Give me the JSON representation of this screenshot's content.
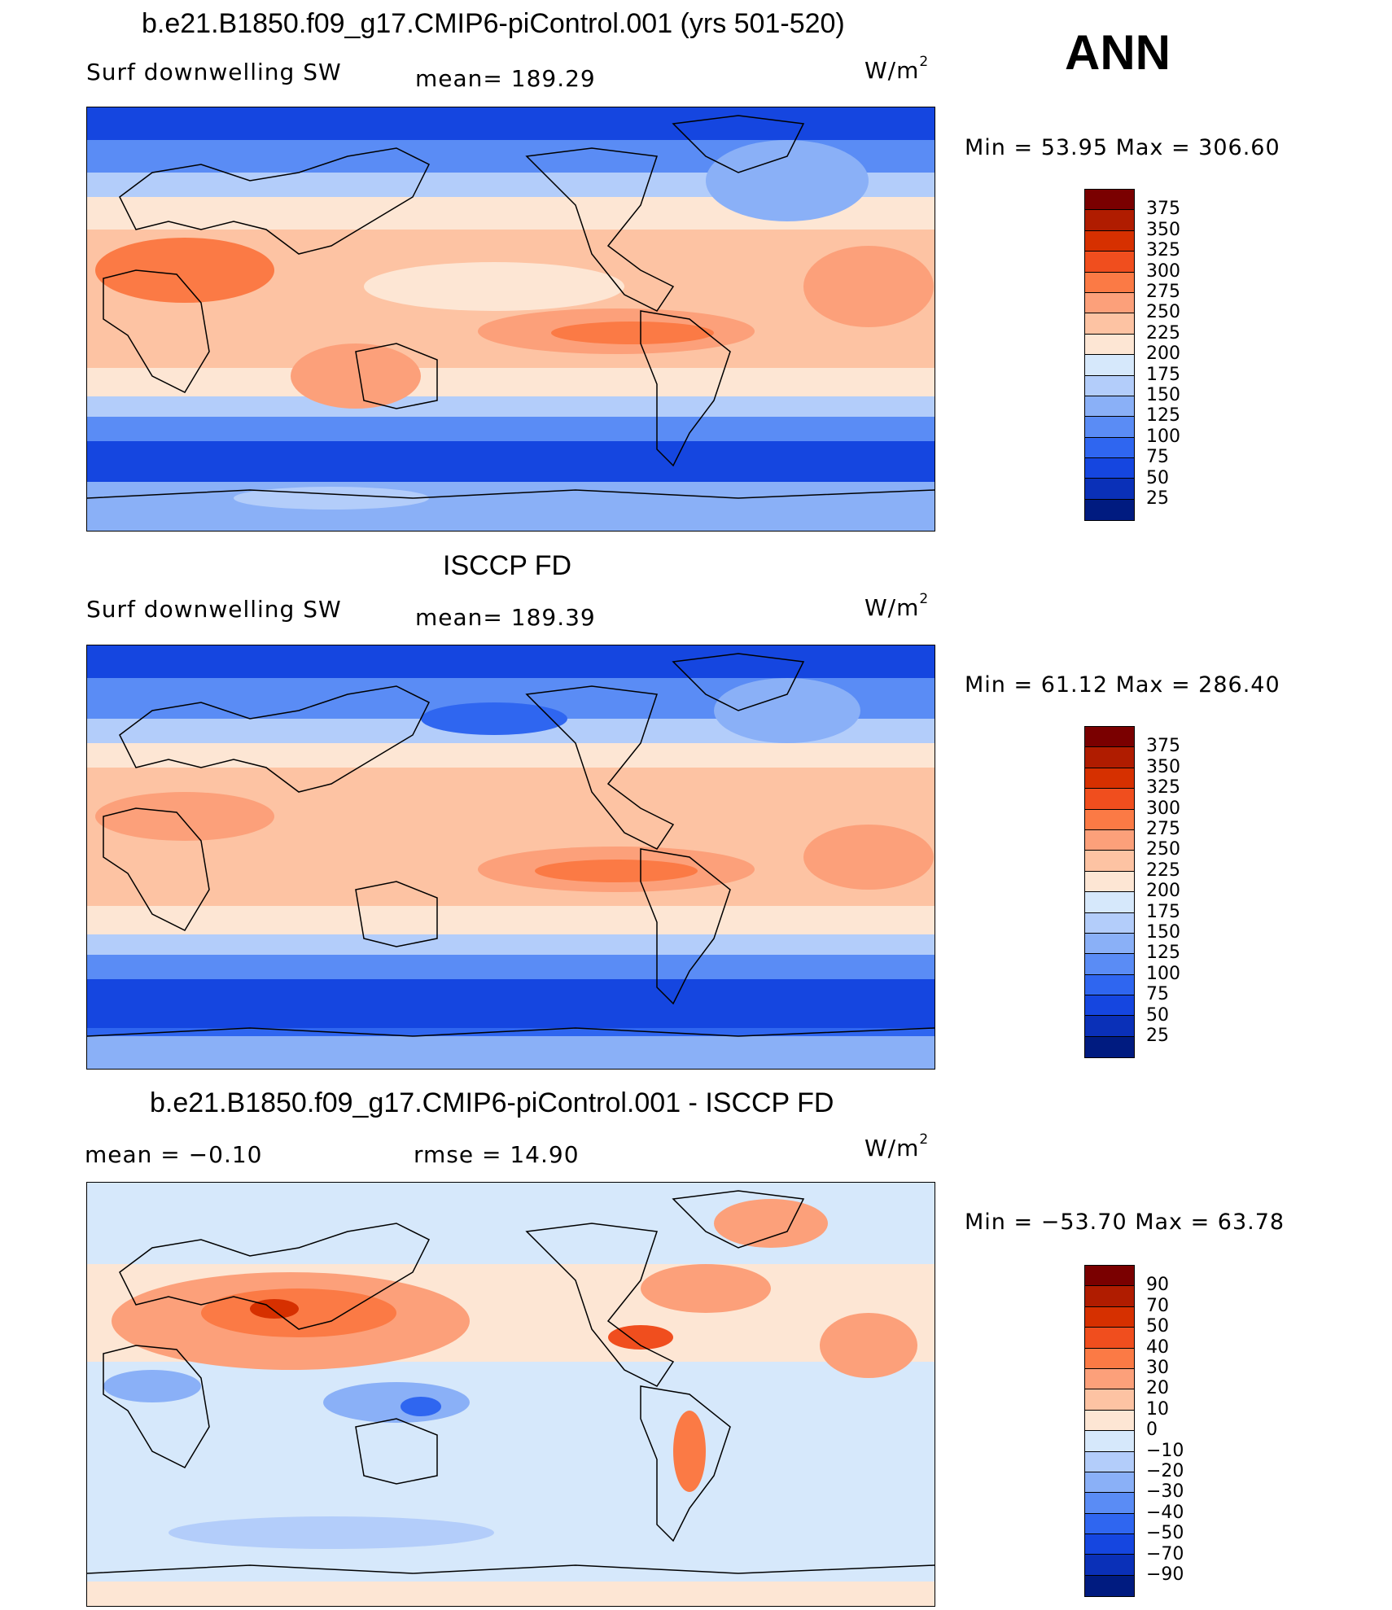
{
  "season": "ANN",
  "panels": [
    {
      "title": "b.e21.B1850.f09_g17.CMIP6-piControl.001 (yrs 501-520)",
      "left_label": "Surf downwelling SW",
      "center_label": "mean= 189.29",
      "units": "W/m",
      "units_sup": "2",
      "minmax": "Min =   53.95 Max = 306.60",
      "colorbar_levels": [
        "375",
        "350",
        "325",
        "300",
        "275",
        "250",
        "225",
        "200",
        "175",
        "150",
        "125",
        "100",
        "75",
        "50",
        "25"
      ],
      "colors": [
        "#7a0000",
        "#b01c00",
        "#d63000",
        "#f04e1e",
        "#fb7a45",
        "#fca07a",
        "#fdc3a3",
        "#fde6d4",
        "#d6e8fb",
        "#b3cdfa",
        "#8ab0f7",
        "#5a8cf5",
        "#2f66f0",
        "#1546e0",
        "#0a30b8",
        "#001b80"
      ]
    },
    {
      "title": "ISCCP FD",
      "left_label": "Surf downwelling SW",
      "center_label": "mean= 189.39",
      "units": "W/m",
      "units_sup": "2",
      "minmax": "Min =   61.12 Max = 286.40",
      "colorbar_levels": [
        "375",
        "350",
        "325",
        "300",
        "275",
        "250",
        "225",
        "200",
        "175",
        "150",
        "125",
        "100",
        "75",
        "50",
        "25"
      ],
      "colors": [
        "#7a0000",
        "#b01c00",
        "#d63000",
        "#f04e1e",
        "#fb7a45",
        "#fca07a",
        "#fdc3a3",
        "#fde6d4",
        "#d6e8fb",
        "#b3cdfa",
        "#8ab0f7",
        "#5a8cf5",
        "#2f66f0",
        "#1546e0",
        "#0a30b8",
        "#001b80"
      ]
    },
    {
      "title": "b.e21.B1850.f09_g17.CMIP6-piControl.001 - ISCCP FD",
      "left_label": "mean =   −0.10",
      "center_label": "rmse =   14.90",
      "units": "W/m",
      "units_sup": "2",
      "minmax": "Min = −53.70 Max =   63.78",
      "colorbar_levels": [
        "90",
        "70",
        "50",
        "40",
        "30",
        "20",
        "10",
        "0",
        "−10",
        "−20",
        "−30",
        "−40",
        "−50",
        "−70",
        "−90"
      ],
      "colors": [
        "#7a0000",
        "#b01c00",
        "#d63000",
        "#f04e1e",
        "#fb7a45",
        "#fca07a",
        "#fdc3a3",
        "#fde6d4",
        "#d6e8fb",
        "#b3cdfa",
        "#8ab0f7",
        "#5a8cf5",
        "#2f66f0",
        "#1546e0",
        "#0a30b8",
        "#001b80"
      ]
    }
  ]
}
